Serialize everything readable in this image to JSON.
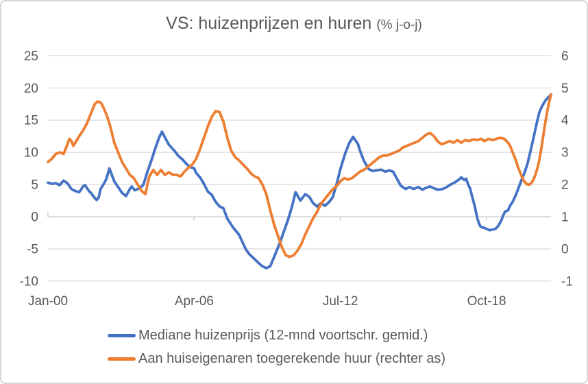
{
  "chart_data": {
    "type": "line",
    "title": "VS: huizenprijzen en huren",
    "title_suffix": "(% j-o-j)",
    "grid": true,
    "legend_position": "bottom-left",
    "x_axis": {
      "tick_labels": [
        "Jan-00",
        "Apr-06",
        "Jul-12",
        "Oct-18"
      ],
      "tick_months": [
        0,
        75,
        150,
        225
      ],
      "range_months": [
        0,
        258
      ]
    },
    "left_axis": {
      "ticks": [
        25,
        20,
        15,
        10,
        5,
        0,
        -5,
        -10
      ],
      "ylim": [
        -10,
        25
      ]
    },
    "right_axis": {
      "ticks": [
        6,
        5,
        4,
        3,
        2,
        1,
        0,
        -1
      ],
      "ylim": [
        -1,
        6
      ]
    },
    "colors": {
      "blue": "#4472C4",
      "orange": "#ED7D31",
      "text": "#595959",
      "gridline": "#DCDCDC",
      "axis_line": "#C6C6C6",
      "border": "#D6D6D6",
      "background": "#FFFFFF"
    },
    "series": [
      {
        "name": "Mediane huizenprijs (12-mnd voortschr. gemid.)",
        "axis": "left",
        "color": "#4472C4",
        "points": [
          [
            0,
            5.3
          ],
          [
            2,
            5.1
          ],
          [
            4,
            5.2
          ],
          [
            6,
            4.9
          ],
          [
            8,
            5.6
          ],
          [
            10,
            5.2
          ],
          [
            12,
            4.3
          ],
          [
            14,
            4.0
          ],
          [
            16,
            3.8
          ],
          [
            18,
            4.7
          ],
          [
            19,
            4.9
          ],
          [
            21,
            4.0
          ],
          [
            22,
            3.7
          ],
          [
            24,
            2.9
          ],
          [
            25,
            2.6
          ],
          [
            26,
            3.0
          ],
          [
            27,
            4.3
          ],
          [
            29,
            5.3
          ],
          [
            30,
            5.9
          ],
          [
            31.5,
            7.5
          ],
          [
            33,
            6.3
          ],
          [
            34,
            5.5
          ],
          [
            36,
            4.6
          ],
          [
            38,
            3.7
          ],
          [
            40,
            3.2
          ],
          [
            42,
            4.3
          ],
          [
            43,
            4.7
          ],
          [
            44.5,
            4.1
          ],
          [
            46,
            4.3
          ],
          [
            47,
            4.4
          ],
          [
            49,
            5.0
          ],
          [
            51,
            7.0
          ],
          [
            53,
            8.7
          ],
          [
            55,
            10.6
          ],
          [
            57,
            12.3
          ],
          [
            58.5,
            13.2
          ],
          [
            60,
            12.3
          ],
          [
            62,
            11.2
          ],
          [
            65,
            10.2
          ],
          [
            67,
            9.4
          ],
          [
            69,
            8.9
          ],
          [
            71,
            8.2
          ],
          [
            73,
            7.7
          ],
          [
            75,
            7.5
          ],
          [
            76,
            6.8
          ],
          [
            78,
            6.1
          ],
          [
            80,
            5.1
          ],
          [
            82,
            3.9
          ],
          [
            84,
            3.4
          ],
          [
            86,
            2.3
          ],
          [
            88,
            1.6
          ],
          [
            90,
            1.3
          ],
          [
            92,
            -0.3
          ],
          [
            95,
            -1.7
          ],
          [
            98,
            -2.8
          ],
          [
            100,
            -4.1
          ],
          [
            101.5,
            -5.1
          ],
          [
            103.5,
            -5.9
          ],
          [
            106,
            -6.6
          ],
          [
            108,
            -7.2
          ],
          [
            110,
            -7.7
          ],
          [
            112,
            -8.0
          ],
          [
            114,
            -7.7
          ],
          [
            116.5,
            -5.9
          ],
          [
            119,
            -4.0
          ],
          [
            121,
            -2.3
          ],
          [
            123,
            -0.6
          ],
          [
            125,
            1.4
          ],
          [
            127,
            3.8
          ],
          [
            129.5,
            2.5
          ],
          [
            132,
            3.5
          ],
          [
            134,
            3.1
          ],
          [
            136,
            2.1
          ],
          [
            138,
            1.6
          ],
          [
            140,
            2.1
          ],
          [
            142,
            1.7
          ],
          [
            144,
            2.2
          ],
          [
            146,
            3.0
          ],
          [
            148,
            5.0
          ],
          [
            150,
            7.4
          ],
          [
            152.5,
            9.9
          ],
          [
            154.5,
            11.4
          ],
          [
            156.5,
            12.4
          ],
          [
            159,
            11.3
          ],
          [
            160,
            10.3
          ],
          [
            162,
            8.7
          ],
          [
            164.5,
            7.4
          ],
          [
            166.5,
            7.1
          ],
          [
            168.5,
            7.2
          ],
          [
            171,
            7.3
          ],
          [
            173,
            7.0
          ],
          [
            175,
            7.2
          ],
          [
            177,
            7.0
          ],
          [
            179,
            5.9
          ],
          [
            181,
            4.8
          ],
          [
            183.5,
            4.3
          ],
          [
            185.5,
            4.6
          ],
          [
            187.5,
            4.3
          ],
          [
            190,
            4.6
          ],
          [
            192,
            4.2
          ],
          [
            194,
            4.5
          ],
          [
            196,
            4.7
          ],
          [
            198,
            4.4
          ],
          [
            200,
            4.2
          ],
          [
            202.5,
            4.3
          ],
          [
            204.5,
            4.6
          ],
          [
            206.5,
            5.0
          ],
          [
            208.5,
            5.3
          ],
          [
            210.5,
            5.7
          ],
          [
            212,
            6.1
          ],
          [
            213.5,
            5.7
          ],
          [
            214.5,
            5.9
          ],
          [
            215.5,
            5.0
          ],
          [
            216.5,
            4.4
          ],
          [
            217.5,
            3.2
          ],
          [
            219,
            1.5
          ],
          [
            220,
            0.0
          ],
          [
            221,
            -1.0
          ],
          [
            222,
            -1.6
          ],
          [
            223.5,
            -1.7
          ],
          [
            225,
            -1.9
          ],
          [
            226.5,
            -2.1
          ],
          [
            228,
            -2.0
          ],
          [
            229.5,
            -1.9
          ],
          [
            231,
            -1.4
          ],
          [
            232.5,
            -0.6
          ],
          [
            233.5,
            0.2
          ],
          [
            234.5,
            0.8
          ],
          [
            236,
            1.0
          ],
          [
            237,
            1.7
          ],
          [
            238.5,
            2.4
          ],
          [
            240,
            3.4
          ],
          [
            241.5,
            4.6
          ],
          [
            243,
            5.8
          ],
          [
            244.5,
            6.9
          ],
          [
            246,
            8.3
          ],
          [
            247.5,
            10.2
          ],
          [
            249,
            12.2
          ],
          [
            250.5,
            14.3
          ],
          [
            252,
            16.2
          ],
          [
            253.5,
            17.2
          ],
          [
            255,
            18.0
          ],
          [
            256.5,
            18.5
          ],
          [
            258,
            18.9
          ]
        ]
      },
      {
        "name": "Aan huiseigenaren toegerekende huur (rechter as)",
        "axis": "right",
        "color": "#ED7D31",
        "points": [
          [
            0,
            2.7
          ],
          [
            2,
            2.8
          ],
          [
            4,
            2.95
          ],
          [
            6,
            3.0
          ],
          [
            8,
            2.95
          ],
          [
            10,
            3.25
          ],
          [
            11,
            3.42
          ],
          [
            12,
            3.35
          ],
          [
            13,
            3.2
          ],
          [
            14,
            3.3
          ],
          [
            16,
            3.5
          ],
          [
            18,
            3.68
          ],
          [
            20,
            3.9
          ],
          [
            22,
            4.2
          ],
          [
            24,
            4.5
          ],
          [
            25.5,
            4.58
          ],
          [
            27,
            4.55
          ],
          [
            28,
            4.45
          ],
          [
            30,
            4.18
          ],
          [
            32,
            3.8
          ],
          [
            34,
            3.3
          ],
          [
            36,
            3.0
          ],
          [
            38,
            2.7
          ],
          [
            40,
            2.5
          ],
          [
            42,
            2.3
          ],
          [
            44,
            2.2
          ],
          [
            46,
            2.0
          ],
          [
            48,
            1.8
          ],
          [
            50,
            1.7
          ],
          [
            51,
            2.0
          ],
          [
            52,
            2.25
          ],
          [
            54,
            2.45
          ],
          [
            56,
            2.3
          ],
          [
            58,
            2.45
          ],
          [
            60,
            2.3
          ],
          [
            62,
            2.38
          ],
          [
            64,
            2.3
          ],
          [
            66,
            2.3
          ],
          [
            68,
            2.25
          ],
          [
            70,
            2.4
          ],
          [
            72,
            2.52
          ],
          [
            74,
            2.62
          ],
          [
            76,
            2.8
          ],
          [
            78,
            3.1
          ],
          [
            80,
            3.45
          ],
          [
            82,
            3.8
          ],
          [
            84,
            4.1
          ],
          [
            86,
            4.28
          ],
          [
            88,
            4.25
          ],
          [
            90,
            3.95
          ],
          [
            92,
            3.45
          ],
          [
            94,
            3.05
          ],
          [
            96,
            2.85
          ],
          [
            98,
            2.75
          ],
          [
            100,
            2.62
          ],
          [
            102,
            2.5
          ],
          [
            104,
            2.35
          ],
          [
            106,
            2.25
          ],
          [
            108,
            2.2
          ],
          [
            110,
            2.0
          ],
          [
            112,
            1.7
          ],
          [
            114,
            1.2
          ],
          [
            116,
            0.75
          ],
          [
            118,
            0.4
          ],
          [
            120,
            0.05
          ],
          [
            122,
            -0.2
          ],
          [
            124,
            -0.25
          ],
          [
            126,
            -0.2
          ],
          [
            128,
            -0.05
          ],
          [
            130,
            0.15
          ],
          [
            132,
            0.45
          ],
          [
            134,
            0.7
          ],
          [
            136,
            0.95
          ],
          [
            138,
            1.15
          ],
          [
            140,
            1.4
          ],
          [
            142,
            1.55
          ],
          [
            144,
            1.7
          ],
          [
            146,
            1.85
          ],
          [
            148,
            1.95
          ],
          [
            150,
            2.1
          ],
          [
            152,
            2.2
          ],
          [
            154,
            2.15
          ],
          [
            156,
            2.2
          ],
          [
            158,
            2.3
          ],
          [
            160,
            2.4
          ],
          [
            162,
            2.45
          ],
          [
            164,
            2.55
          ],
          [
            166,
            2.65
          ],
          [
            168,
            2.75
          ],
          [
            170,
            2.85
          ],
          [
            172,
            2.9
          ],
          [
            174,
            2.9
          ],
          [
            176,
            2.95
          ],
          [
            178,
            3.0
          ],
          [
            180,
            3.05
          ],
          [
            182,
            3.15
          ],
          [
            184,
            3.2
          ],
          [
            186,
            3.25
          ],
          [
            188,
            3.3
          ],
          [
            190,
            3.35
          ],
          [
            192,
            3.45
          ],
          [
            194,
            3.55
          ],
          [
            196,
            3.6
          ],
          [
            198,
            3.5
          ],
          [
            200,
            3.33
          ],
          [
            202,
            3.25
          ],
          [
            204,
            3.3
          ],
          [
            206,
            3.35
          ],
          [
            208,
            3.3
          ],
          [
            210,
            3.38
          ],
          [
            212,
            3.3
          ],
          [
            214,
            3.38
          ],
          [
            216,
            3.35
          ],
          [
            218,
            3.4
          ],
          [
            220,
            3.38
          ],
          [
            222,
            3.42
          ],
          [
            224,
            3.35
          ],
          [
            226,
            3.42
          ],
          [
            228,
            3.38
          ],
          [
            230,
            3.42
          ],
          [
            232,
            3.45
          ],
          [
            234,
            3.42
          ],
          [
            236,
            3.3
          ],
          [
            237,
            3.2
          ],
          [
            238,
            3.05
          ],
          [
            239,
            2.9
          ],
          [
            240,
            2.75
          ],
          [
            241,
            2.55
          ],
          [
            242,
            2.4
          ],
          [
            243,
            2.25
          ],
          [
            244,
            2.12
          ],
          [
            245,
            2.05
          ],
          [
            246,
            2.0
          ],
          [
            247,
            2.0
          ],
          [
            248,
            2.05
          ],
          [
            249,
            2.15
          ],
          [
            250,
            2.3
          ],
          [
            251,
            2.5
          ],
          [
            252,
            2.75
          ],
          [
            253,
            3.1
          ],
          [
            254,
            3.5
          ],
          [
            255,
            3.9
          ],
          [
            256,
            4.25
          ],
          [
            257,
            4.55
          ],
          [
            258,
            4.8
          ]
        ]
      }
    ]
  },
  "legend": {
    "items": [
      {
        "label": "Mediane huizenprijs (12-mnd voortschr. gemid.)"
      },
      {
        "label": "Aan huiseigenaren toegerekende huur (rechter as)"
      }
    ]
  }
}
